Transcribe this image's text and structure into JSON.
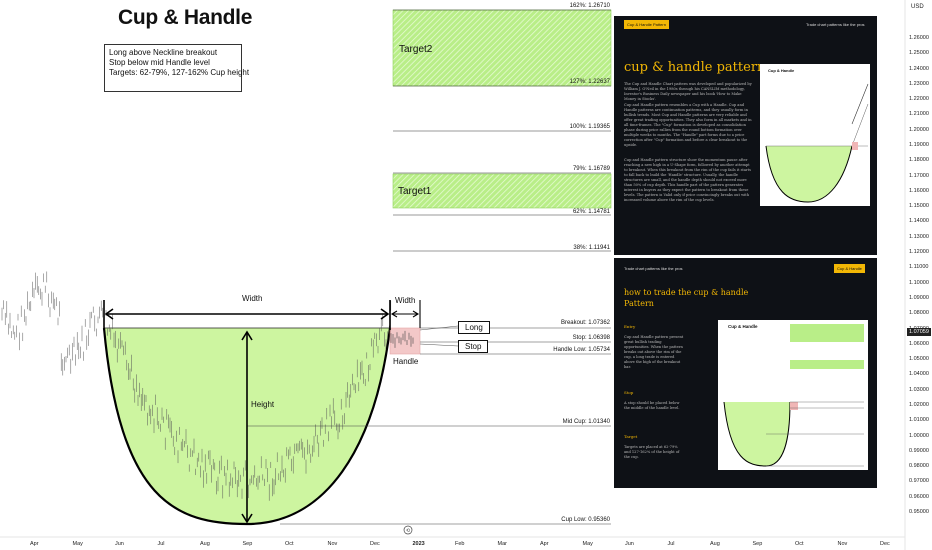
{
  "chart": {
    "title": "Cup & Handle",
    "notes": [
      "Long above Neckline breakout",
      "Stop below mid Handle level",
      "Targets: 62-79%, 127-162% Cup height"
    ],
    "fib_levels": [
      "162%: 1.26710",
      "127%: 1.22637",
      "100%: 1.19365",
      "79%: 1.16789",
      "62%: 1.14781",
      "38%: 1.11941"
    ],
    "fib_values": [
      1.2671,
      1.22637,
      1.19365,
      1.16789,
      1.14781,
      1.11941
    ],
    "targets": [
      "Target2",
      "Target1"
    ],
    "levels": {
      "breakout": "Breakout: 1.07362",
      "stop": "Stop: 1.06398",
      "handle_low": "Handle Low: 1.05734",
      "mid_cup": "Mid Cup: 1.01340",
      "cup_low": "Cup Low: 0.95360"
    },
    "level_values": {
      "breakout": 1.07362,
      "stop": 1.06398,
      "handle_low": 1.05734,
      "mid_cup": 1.0134,
      "cup_low": 0.9536
    },
    "annotations": {
      "width": "Width",
      "handle_width": "Width",
      "height": "Height",
      "handle": "Handle",
      "long": "Long",
      "stop": "Stop"
    },
    "price_axis": {
      "currency": "USD",
      "ticks": [
        "1.26000",
        "1.25000",
        "1.24000",
        "1.23000",
        "1.22000",
        "1.21000",
        "1.20000",
        "1.19000",
        "1.18000",
        "1.17000",
        "1.16000",
        "1.15000",
        "1.14000",
        "1.13000",
        "1.12000",
        "1.11000",
        "1.10000",
        "1.09000",
        "1.08000",
        "1.07000",
        "1.06000",
        "1.05000",
        "1.04000",
        "1.03000",
        "1.02000",
        "1.01000",
        "1.00000",
        "0.99000",
        "0.98000",
        "0.97000",
        "0.96000",
        "0.95000"
      ],
      "current_price": "1.07059"
    },
    "time_axis": [
      "Apr",
      "May",
      "Jun",
      "Jul",
      "Aug",
      "Sep",
      "Oct",
      "Nov",
      "Dec",
      "2023",
      "Feb",
      "Mar",
      "Apr",
      "May",
      "Jun",
      "Jul",
      "Aug",
      "Sep",
      "Oct",
      "Nov",
      "Dec"
    ],
    "colors": {
      "cup_fill": "#cdf5a0",
      "target_fill": "#b6ec86",
      "handle_fill": "#f0b6b6",
      "panel_bg": "#0e1116",
      "accent": "#f2b705"
    }
  },
  "panel1": {
    "badge": "Cup & Handle Pattern",
    "tagline": "Trade chart patterns like the pros",
    "heading": "cup & handle pattern",
    "paragraphs": [
      "The Cup and Handle Chart pattern was developed and popularized by William J. O'Neil in the 1980s through his CANSLIM methodology, Investor's Business Daily newspaper and his book 'How to Make Money in Stocks'.",
      "Cup and Handle pattern resembles a Cup with a Handle. Cup and Handle patterns are continuation patterns, and they usually form in bullish trends. Most Cup and Handle patterns are very reliable and offer great trading opportunities. They also form in all markets and in all time-frames. The \"Cup\" formation is developed as consolidation phase during price rallies from the round bottom formation over multiple weeks to months. The \"Handle\" part forms due to a price correction after \"Cup\" formation and before a clear breakout to the upside.",
      "Cup and Handle pattern structure show the momentum pause after reaching a new high in a U-Shape form, followed by another attempt to breakout. When this breakout from the rim of the cup fails it starts to fall back to build the 'Handle' structure. Usually, the handle structures are small, and the handle depth should not exceed more than 50% of cup depth. This handle part of the pattern generates interest in buyers as they expect the pattern to breakout from these levels. The pattern is Valid only if price convincingly breaks out with increased volume above the rim of the cup levels."
    ]
  },
  "panel2": {
    "tagline": "Trade chart patterns like the pros",
    "badge": "Cup & Handle",
    "heading_line1": "how to trade the cup & handle",
    "heading_line2": "Pattern",
    "entry_label": "Entry",
    "entry_text": "Cup and Handle pattern present great bullish trading opportunities. When the pattern breaks out above the rim of the cup, a long trade is entered above the high of the breakout bar.",
    "stop_label": "Stop",
    "stop_text": "A stop should be placed below the middle of the handle level.",
    "target_label": "Target",
    "target_text": "Targets are placed at 62-79% and 127-162% of the height of the cup."
  }
}
